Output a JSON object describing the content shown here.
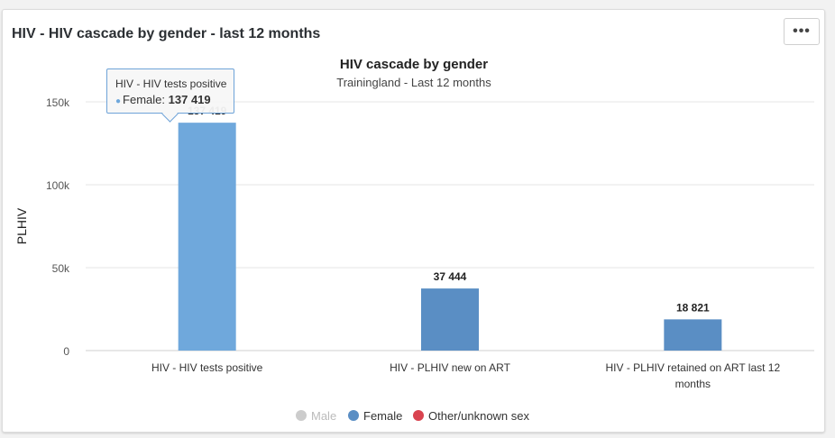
{
  "card": {
    "title": "HIV - HIV cascade by gender - last 12 months",
    "menu_label": "•••"
  },
  "tooltip": {
    "series": "HIV - HIV tests positive",
    "label": "Female:",
    "value": "137 419"
  },
  "chart_data": {
    "type": "bar",
    "title": "HIV cascade by gender",
    "subtitle": "Trainingland - Last 12 months",
    "ylabel": "PLHIV",
    "xlabel": "",
    "ylim": [
      0,
      150000
    ],
    "yticks": [
      {
        "value": 0,
        "label": "0"
      },
      {
        "value": 50000,
        "label": "50k"
      },
      {
        "value": 100000,
        "label": "100k"
      },
      {
        "value": 150000,
        "label": "150k"
      }
    ],
    "categories": [
      [
        "HIV - HIV tests positive"
      ],
      [
        "HIV - PLHIV new on ART"
      ],
      [
        "HIV - PLHIV retained on ART last 12",
        "months"
      ]
    ],
    "series": [
      {
        "name": "Male",
        "color": "#cccccc",
        "values": [
          null,
          null,
          null
        ],
        "value_labels": [
          "",
          "",
          ""
        ],
        "visible": false
      },
      {
        "name": "Female",
        "color": "#5a8ec4",
        "highlight_color": "#6fa8dc",
        "values": [
          137419,
          37444,
          18821
        ],
        "value_labels": [
          "137 419",
          "37 444",
          "18 821"
        ],
        "visible": true
      },
      {
        "name": "Other/unknown sex",
        "color": "#d9434f",
        "values": [
          null,
          null,
          null
        ],
        "value_labels": [
          "",
          "",
          ""
        ],
        "visible": true
      }
    ],
    "highlighted_index": 0,
    "grid": true,
    "legend_position": "bottom-center"
  }
}
